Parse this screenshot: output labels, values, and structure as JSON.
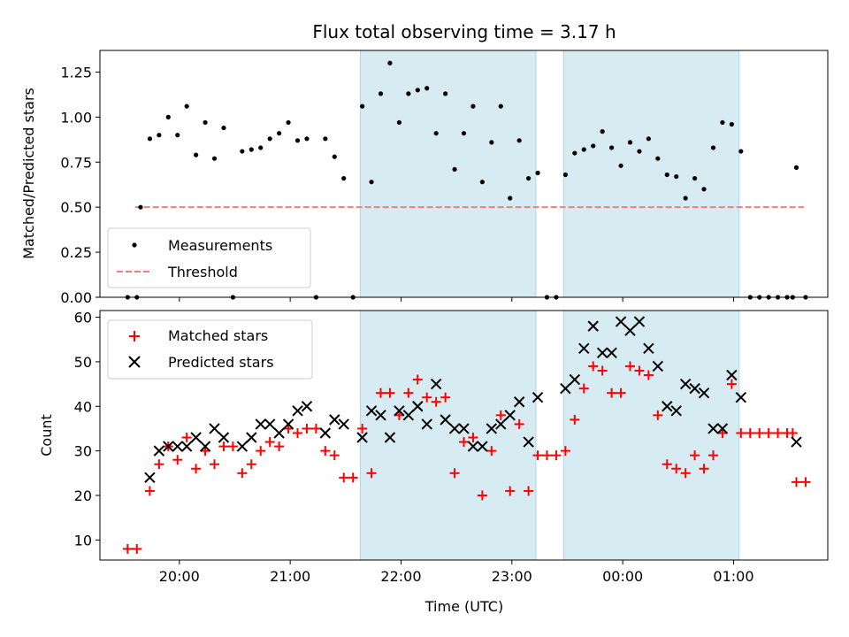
{
  "chart_data": [
    {
      "type": "scatter",
      "title": "Flux total observing time = 3.17 h",
      "xlabel": "",
      "ylabel": "Matched/Predicted stars",
      "ylim": [
        0,
        1.37
      ],
      "yticks": [
        "0.00",
        "0.25",
        "0.50",
        "0.75",
        "1.00",
        "1.25"
      ],
      "legend": {
        "placement": "lower-left"
      },
      "shaded_intervals": [
        [
          "21:38",
          "23:13"
        ],
        [
          "23:28",
          "01:03"
        ]
      ],
      "threshold": {
        "name": "Threshold",
        "value": 0.5,
        "x_start": "19:36",
        "x_end": "01:38",
        "color": "#f08080"
      },
      "series": [
        {
          "name": "Measurements",
          "color": "#000000",
          "points": [
            [
              "19:32",
              0
            ],
            [
              "19:37",
              0
            ],
            [
              "19:39",
              0.5
            ],
            [
              "19:44",
              0.88
            ],
            [
              "19:49",
              0.9
            ],
            [
              "19:54",
              1.0
            ],
            [
              "19:59",
              0.9
            ],
            [
              "20:04",
              1.06
            ],
            [
              "20:09",
              0.79
            ],
            [
              "20:14",
              0.97
            ],
            [
              "20:19",
              0.77
            ],
            [
              "20:24",
              0.94
            ],
            [
              "20:29",
              0
            ],
            [
              "20:34",
              0.81
            ],
            [
              "20:39",
              0.82
            ],
            [
              "20:44",
              0.83
            ],
            [
              "20:49",
              0.88
            ],
            [
              "20:54",
              0.91
            ],
            [
              "20:59",
              0.97
            ],
            [
              "21:04",
              0.87
            ],
            [
              "21:09",
              0.88
            ],
            [
              "21:14",
              0
            ],
            [
              "21:19",
              0.88
            ],
            [
              "21:24",
              0.78
            ],
            [
              "21:29",
              0.66
            ],
            [
              "21:34",
              0
            ],
            [
              "21:39",
              1.06
            ],
            [
              "21:44",
              0.64
            ],
            [
              "21:49",
              1.13
            ],
            [
              "21:54",
              1.3
            ],
            [
              "21:59",
              0.97
            ],
            [
              "22:04",
              1.13
            ],
            [
              "22:09",
              1.15
            ],
            [
              "22:14",
              1.16
            ],
            [
              "22:19",
              0.91
            ],
            [
              "22:24",
              1.13
            ],
            [
              "22:29",
              0.71
            ],
            [
              "22:34",
              0.91
            ],
            [
              "22:39",
              1.06
            ],
            [
              "22:44",
              0.64
            ],
            [
              "22:49",
              0.86
            ],
            [
              "22:54",
              1.06
            ],
            [
              "22:59",
              0.55
            ],
            [
              "23:04",
              0.87
            ],
            [
              "23:09",
              0.66
            ],
            [
              "23:14",
              0.69
            ],
            [
              "23:19",
              0
            ],
            [
              "23:24",
              0
            ],
            [
              "23:29",
              0.68
            ],
            [
              "23:34",
              0.8
            ],
            [
              "23:39",
              0.82
            ],
            [
              "23:44",
              0.84
            ],
            [
              "23:49",
              0.92
            ],
            [
              "23:54",
              0.83
            ],
            [
              "23:59",
              0.73
            ],
            [
              "00:04",
              0.86
            ],
            [
              "00:09",
              0.81
            ],
            [
              "00:14",
              0.88
            ],
            [
              "00:19",
              0.77
            ],
            [
              "00:24",
              0.68
            ],
            [
              "00:29",
              0.67
            ],
            [
              "00:34",
              0.55
            ],
            [
              "00:39",
              0.66
            ],
            [
              "00:44",
              0.6
            ],
            [
              "00:49",
              0.83
            ],
            [
              "00:54",
              0.97
            ],
            [
              "00:59",
              0.96
            ],
            [
              "01:04",
              0.81
            ],
            [
              "01:09",
              0
            ],
            [
              "01:14",
              0
            ],
            [
              "01:19",
              0
            ],
            [
              "01:24",
              0
            ],
            [
              "01:29",
              0
            ],
            [
              "01:32",
              0
            ],
            [
              "01:34",
              0.72
            ],
            [
              "01:39",
              0
            ]
          ]
        }
      ]
    },
    {
      "type": "scatter",
      "title": "",
      "xlabel": "Time (UTC)",
      "ylabel": "Count",
      "ylim": [
        5.5,
        61.5
      ],
      "yticks": [
        "10",
        "20",
        "30",
        "40",
        "50",
        "60"
      ],
      "xticks": [
        "20:00",
        "21:00",
        "22:00",
        "23:00",
        "00:00",
        "01:00"
      ],
      "legend": {
        "placement": "top-left"
      },
      "shaded_intervals": [
        [
          "21:38",
          "23:13"
        ],
        [
          "23:28",
          "01:03"
        ]
      ],
      "series": [
        {
          "name": "Matched stars",
          "marker": "+",
          "color": "#ff0000",
          "points": [
            [
              "19:32",
              8
            ],
            [
              "19:37",
              8
            ],
            [
              "19:44",
              21
            ],
            [
              "19:49",
              27
            ],
            [
              "19:54",
              31
            ],
            [
              "19:59",
              28
            ],
            [
              "20:04",
              33
            ],
            [
              "20:09",
              26
            ],
            [
              "20:14",
              30
            ],
            [
              "20:19",
              27
            ],
            [
              "20:24",
              31
            ],
            [
              "20:29",
              31
            ],
            [
              "20:34",
              25
            ],
            [
              "20:39",
              27
            ],
            [
              "20:44",
              30
            ],
            [
              "20:49",
              32
            ],
            [
              "20:54",
              31
            ],
            [
              "20:59",
              35
            ],
            [
              "21:04",
              34
            ],
            [
              "21:09",
              35
            ],
            [
              "21:14",
              35
            ],
            [
              "21:19",
              30
            ],
            [
              "21:24",
              29
            ],
            [
              "21:29",
              24
            ],
            [
              "21:34",
              24
            ],
            [
              "21:39",
              35
            ],
            [
              "21:44",
              25
            ],
            [
              "21:49",
              43
            ],
            [
              "21:54",
              43
            ],
            [
              "21:59",
              38
            ],
            [
              "22:04",
              43
            ],
            [
              "22:09",
              46
            ],
            [
              "22:14",
              42
            ],
            [
              "22:19",
              41
            ],
            [
              "22:24",
              42
            ],
            [
              "22:29",
              25
            ],
            [
              "22:34",
              32
            ],
            [
              "22:39",
              33
            ],
            [
              "22:44",
              20
            ],
            [
              "22:49",
              30
            ],
            [
              "22:54",
              38
            ],
            [
              "22:59",
              21
            ],
            [
              "23:04",
              36
            ],
            [
              "23:09",
              21
            ],
            [
              "23:14",
              29
            ],
            [
              "23:19",
              29
            ],
            [
              "23:24",
              29
            ],
            [
              "23:29",
              30
            ],
            [
              "23:34",
              37
            ],
            [
              "23:39",
              44
            ],
            [
              "23:44",
              49
            ],
            [
              "23:49",
              48
            ],
            [
              "23:54",
              43
            ],
            [
              "23:59",
              43
            ],
            [
              "00:04",
              49
            ],
            [
              "00:09",
              48
            ],
            [
              "00:14",
              47
            ],
            [
              "00:19",
              38
            ],
            [
              "00:24",
              27
            ],
            [
              "00:29",
              26
            ],
            [
              "00:34",
              25
            ],
            [
              "00:39",
              29
            ],
            [
              "00:44",
              26
            ],
            [
              "00:49",
              29
            ],
            [
              "00:54",
              34
            ],
            [
              "00:59",
              45
            ],
            [
              "01:04",
              34
            ],
            [
              "01:09",
              34
            ],
            [
              "01:14",
              34
            ],
            [
              "01:19",
              34
            ],
            [
              "01:24",
              34
            ],
            [
              "01:29",
              34
            ],
            [
              "01:32",
              34
            ],
            [
              "01:34",
              23
            ],
            [
              "01:39",
              23
            ]
          ]
        },
        {
          "name": "Predicted stars",
          "marker": "x",
          "color": "#000000",
          "points": [
            [
              "19:44",
              24
            ],
            [
              "19:49",
              30
            ],
            [
              "19:54",
              31
            ],
            [
              "19:59",
              31
            ],
            [
              "20:04",
              31
            ],
            [
              "20:09",
              33
            ],
            [
              "20:14",
              31
            ],
            [
              "20:19",
              35
            ],
            [
              "20:24",
              33
            ],
            [
              "20:34",
              31
            ],
            [
              "20:39",
              33
            ],
            [
              "20:44",
              36
            ],
            [
              "20:49",
              36
            ],
            [
              "20:54",
              34
            ],
            [
              "20:59",
              36
            ],
            [
              "21:04",
              39
            ],
            [
              "21:09",
              40
            ],
            [
              "21:19",
              34
            ],
            [
              "21:24",
              37
            ],
            [
              "21:29",
              36
            ],
            [
              "21:39",
              33
            ],
            [
              "21:44",
              39
            ],
            [
              "21:49",
              38
            ],
            [
              "21:54",
              33
            ],
            [
              "21:59",
              39
            ],
            [
              "22:04",
              38
            ],
            [
              "22:09",
              40
            ],
            [
              "22:14",
              36
            ],
            [
              "22:19",
              45
            ],
            [
              "22:24",
              37
            ],
            [
              "22:29",
              35
            ],
            [
              "22:34",
              35
            ],
            [
              "22:39",
              31
            ],
            [
              "22:44",
              31
            ],
            [
              "22:49",
              35
            ],
            [
              "22:54",
              36
            ],
            [
              "22:59",
              38
            ],
            [
              "23:04",
              41
            ],
            [
              "23:09",
              32
            ],
            [
              "23:14",
              42
            ],
            [
              "23:29",
              44
            ],
            [
              "23:34",
              46
            ],
            [
              "23:39",
              53
            ],
            [
              "23:44",
              58
            ],
            [
              "23:49",
              52
            ],
            [
              "23:54",
              52
            ],
            [
              "23:59",
              59
            ],
            [
              "00:04",
              57
            ],
            [
              "00:09",
              59
            ],
            [
              "00:14",
              53
            ],
            [
              "00:19",
              49
            ],
            [
              "00:24",
              40
            ],
            [
              "00:29",
              39
            ],
            [
              "00:34",
              45
            ],
            [
              "00:39",
              44
            ],
            [
              "00:44",
              43
            ],
            [
              "00:49",
              35
            ],
            [
              "00:54",
              35
            ],
            [
              "00:59",
              47
            ],
            [
              "01:04",
              42
            ],
            [
              "01:34",
              32
            ]
          ]
        }
      ]
    }
  ]
}
